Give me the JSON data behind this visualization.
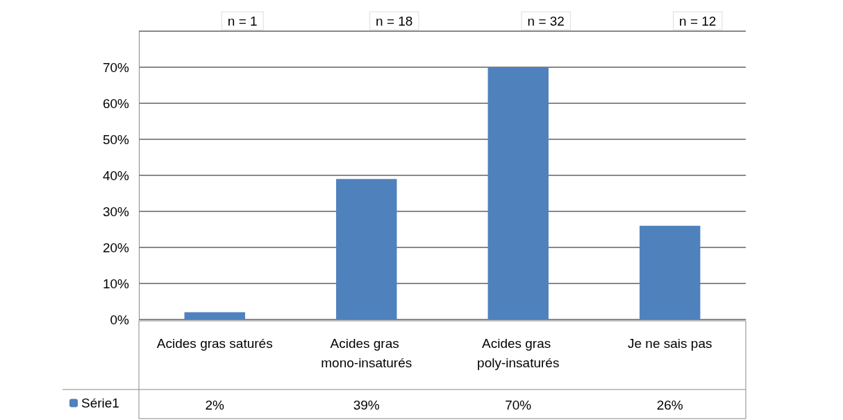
{
  "chart_data": {
    "type": "bar",
    "categories": [
      "Acides gras saturés",
      "Acides gras mono-insaturés",
      "Acides gras poly-insaturés",
      "Je ne sais pas"
    ],
    "series": [
      {
        "name": "Série1",
        "color": "#4f81bd",
        "values": [
          2,
          39,
          70,
          26
        ],
        "value_labels": [
          "2%",
          "39%",
          "70%",
          "26%"
        ]
      }
    ],
    "ylim": [
      0,
      80
    ],
    "yticks": [
      {
        "value": 0,
        "label": "0%"
      },
      {
        "value": 10,
        "label": "10%"
      },
      {
        "value": 20,
        "label": "20%"
      },
      {
        "value": 30,
        "label": "30%"
      },
      {
        "value": 40,
        "label": "40%"
      },
      {
        "value": 50,
        "label": "50%"
      },
      {
        "value": 60,
        "label": "60%"
      },
      {
        "value": 70,
        "label": "70%"
      },
      {
        "value": 80,
        "label": null
      }
    ],
    "grid": "y",
    "legend": "bottom left",
    "annotations": [
      "n = 1",
      "n = 18",
      "n = 32",
      "n = 12"
    ]
  }
}
